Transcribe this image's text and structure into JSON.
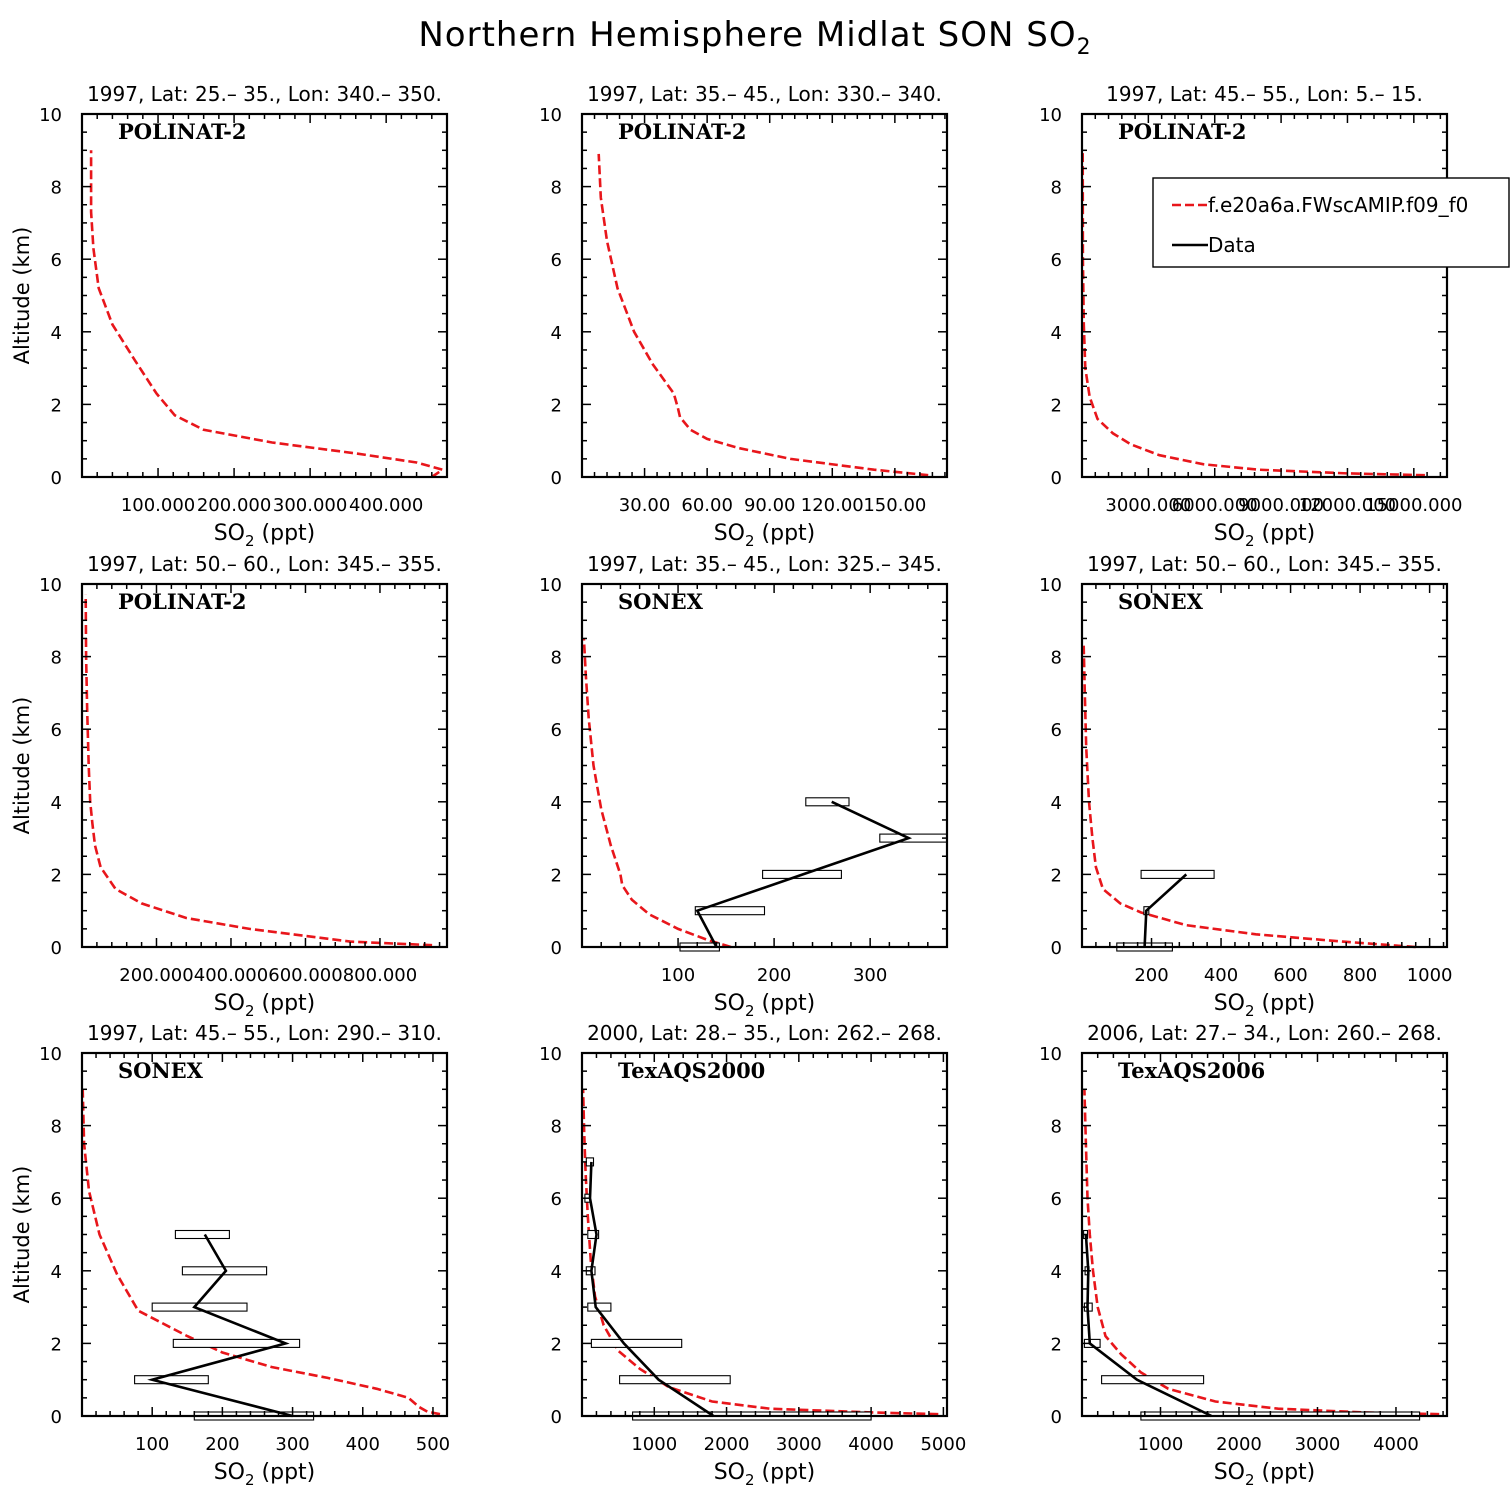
{
  "figure": {
    "title": "Northern Hemisphere Midlat SON SO",
    "title_sub": "2"
  },
  "legend": {
    "model_label": "f.e20a6a.FWscAMIP.f09_f0",
    "data_label": "Data",
    "model_color": "#e8161b",
    "data_color": "#000000"
  },
  "chart_data": [
    {
      "type": "line",
      "subtitle": "1997, Lat: 25.– 35., Lon: 340.– 350.",
      "campaign": "POLINAT-2",
      "ylabel": "Altitude (km)",
      "xlabel": "SO",
      "xlabel_sub": "2",
      "xlabel_unit": " (ppt)",
      "xlim": [
        0,
        480
      ],
      "ylim": [
        0,
        10
      ],
      "xticks": [
        100,
        200,
        300,
        400
      ],
      "xtick_labels": [
        "100.000",
        "200.000",
        "300.000",
        "400.000"
      ],
      "yticks": [
        0,
        2,
        4,
        6,
        8,
        10
      ],
      "series": [
        {
          "x": [
            460,
            474,
            440,
            360,
            250,
            160,
            122,
            98,
            70,
            40,
            22,
            15,
            12,
            12,
            12
          ],
          "y": [
            0.0,
            0.2,
            0.4,
            0.65,
            0.95,
            1.3,
            1.7,
            2.3,
            3.2,
            4.2,
            5.2,
            6.3,
            7.3,
            8.3,
            9.0
          ]
        }
      ],
      "data": null
    },
    {
      "type": "line",
      "subtitle": "1997, Lat: 35.– 45., Lon: 330.– 340.",
      "campaign": "POLINAT-2",
      "ylabel": "",
      "xlabel": "SO",
      "xlabel_sub": "2",
      "xlabel_unit": " (ppt)",
      "xlim": [
        0,
        175
      ],
      "ylim": [
        0,
        10
      ],
      "xticks": [
        30,
        60,
        90,
        120,
        150
      ],
      "xtick_labels": [
        "30.00",
        "60.00",
        "90.00",
        "120.00",
        "150.00"
      ],
      "series": [
        {
          "x": [
            166,
            140,
            100,
            75,
            60,
            52,
            47,
            46,
            44,
            34,
            25,
            17,
            12,
            9,
            8
          ],
          "y": [
            0.05,
            0.2,
            0.5,
            0.8,
            1.05,
            1.3,
            1.65,
            1.9,
            2.3,
            3.1,
            4.0,
            5.2,
            6.5,
            7.7,
            8.9
          ]
        }
      ],
      "data": null
    },
    {
      "type": "line",
      "subtitle": "1997, Lat: 45.– 55., Lon: 5.– 15.",
      "campaign": "POLINAT-2",
      "ylabel": "",
      "xlabel": "SO",
      "xlabel_sub": "2",
      "xlabel_unit": " (ppt)",
      "xlim": [
        0,
        16500
      ],
      "ylim": [
        0,
        10
      ],
      "xticks": [
        3000,
        6000,
        9000,
        12000,
        15000
      ],
      "xtick_labels": [
        "3000.000",
        "6000.000",
        "9000.000",
        "12000.000",
        "15000.000"
      ],
      "series": [
        {
          "x": [
            15500,
            12000,
            8000,
            5500,
            3500,
            2200,
            1400,
            700,
            350,
            150,
            80,
            40,
            30
          ],
          "y": [
            0.05,
            0.1,
            0.2,
            0.35,
            0.6,
            0.9,
            1.2,
            1.6,
            2.2,
            3.0,
            4.2,
            6.0,
            9.0
          ]
        }
      ],
      "data": null
    },
    {
      "type": "line",
      "subtitle": "1997, Lat: 50.– 60., Lon: 345.– 355.",
      "campaign": "POLINAT-2",
      "ylabel": "Altitude (km)",
      "xlabel": "SO",
      "xlabel_sub": "2",
      "xlabel_unit": " (ppt)",
      "xlim": [
        0,
        980
      ],
      "ylim": [
        0,
        10
      ],
      "xticks": [
        200,
        400,
        600,
        800
      ],
      "xtick_labels": [
        "200.000",
        "400.000",
        "600.000",
        "800.000"
      ],
      "series": [
        {
          "x": [
            940,
            720,
            450,
            280,
            160,
            90,
            50,
            35,
            28,
            22,
            18,
            14,
            11,
            10
          ],
          "y": [
            0.05,
            0.15,
            0.5,
            0.8,
            1.2,
            1.6,
            2.2,
            2.8,
            3.4,
            4.0,
            5.0,
            6.5,
            8.0,
            9.7
          ]
        }
      ],
      "data": null
    },
    {
      "type": "line",
      "subtitle": "1997, Lat: 35.– 45., Lon: 325.– 345.",
      "campaign": "SONEX",
      "ylabel": "",
      "xlabel": "SO",
      "xlabel_sub": "2",
      "xlabel_unit": " (ppt)",
      "xlim": [
        0,
        380
      ],
      "ylim": [
        0,
        10
      ],
      "xticks": [
        100,
        200,
        300
      ],
      "xtick_labels": [
        "100",
        "200",
        "300"
      ],
      "series": [
        {
          "x": [
            155,
            130,
            100,
            70,
            52,
            42,
            40,
            30,
            20,
            12,
            7,
            4,
            2
          ],
          "y": [
            0.0,
            0.2,
            0.5,
            0.9,
            1.3,
            1.7,
            2.0,
            2.8,
            3.8,
            5.0,
            6.3,
            7.5,
            8.5
          ]
        }
      ],
      "data": {
        "x": [
          140,
          120,
          230,
          340,
          260
        ],
        "y": [
          0.0,
          1.0,
          2.0,
          3.0,
          4.0
        ],
        "xmin": [
          102,
          118,
          188,
          310,
          233
        ],
        "xmax": [
          143,
          190,
          270,
          380,
          278
        ]
      }
    },
    {
      "type": "line",
      "subtitle": "1997, Lat: 50.– 60., Lon: 345.– 355.",
      "campaign": "SONEX",
      "ylabel": "",
      "xlabel": "SO",
      "xlabel_sub": "2",
      "xlabel_unit": " (ppt)",
      "xlim": [
        0,
        1050
      ],
      "ylim": [
        0,
        10
      ],
      "xticks": [
        200,
        400,
        600,
        800,
        1000
      ],
      "xtick_labels": [
        "200",
        "400",
        "600",
        "800",
        "1000"
      ],
      "series": [
        {
          "x": [
            960,
            750,
            500,
            300,
            170,
            110,
            60,
            40,
            30,
            20,
            12,
            8,
            5
          ],
          "y": [
            0.0,
            0.15,
            0.35,
            0.6,
            0.95,
            1.2,
            1.6,
            2.2,
            3.0,
            4.0,
            5.5,
            7.0,
            8.3
          ]
        }
      ],
      "data": {
        "x": [
          180,
          185,
          300
        ],
        "y": [
          0.0,
          1.0,
          2.0
        ],
        "xmin": [
          100,
          178,
          170
        ],
        "xmax": [
          260,
          192,
          380
        ]
      }
    },
    {
      "type": "line",
      "subtitle": "1997, Lat: 45.– 55., Lon: 290.– 310.",
      "campaign": "SONEX",
      "ylabel": "Altitude (km)",
      "xlabel": "SO",
      "xlabel_sub": "2",
      "xlabel_unit": " (ppt)",
      "xlim": [
        0,
        520
      ],
      "ylim": [
        0,
        10
      ],
      "xticks": [
        100,
        200,
        300,
        400,
        500
      ],
      "xtick_labels": [
        "100",
        "200",
        "300",
        "400",
        "500"
      ],
      "series": [
        {
          "x": [
            510,
            492,
            480,
            465,
            420,
            350,
            270,
            200,
            150,
            80,
            50,
            25,
            10,
            3,
            1
          ],
          "y": [
            0.05,
            0.12,
            0.25,
            0.5,
            0.75,
            1.05,
            1.35,
            1.75,
            2.2,
            2.9,
            3.9,
            5.0,
            6.2,
            7.5,
            9.0
          ]
        }
      ],
      "data": {
        "x": [
          300,
          100,
          290,
          160,
          205,
          175
        ],
        "y": [
          0.0,
          1.0,
          2.0,
          3.0,
          4.0,
          5.0
        ],
        "xmin": [
          160,
          75,
          130,
          100,
          143,
          133
        ],
        "xmax": [
          330,
          180,
          310,
          235,
          263,
          210
        ]
      }
    },
    {
      "type": "line",
      "subtitle": "2000, Lat: 28.– 35., Lon: 262.– 268.",
      "campaign": "TexAQS2000",
      "ylabel": "",
      "xlabel": "SO",
      "xlabel_sub": "2",
      "xlabel_unit": " (ppt)",
      "xlim": [
        0,
        5050
      ],
      "ylim": [
        0,
        10
      ],
      "xticks": [
        1000,
        2000,
        3000,
        4000,
        5000
      ],
      "xtick_labels": [
        "1000",
        "2000",
        "3000",
        "4000",
        "5000"
      ],
      "series": [
        {
          "x": [
            4930,
            4000,
            2600,
            1800,
            1200,
            800,
            500,
            300,
            180,
            120,
            80,
            50,
            30,
            15
          ],
          "y": [
            0.05,
            0.1,
            0.2,
            0.4,
            0.8,
            1.3,
            1.8,
            2.5,
            3.3,
            4.3,
            5.5,
            6.7,
            7.8,
            9.0
          ]
        }
      ],
      "data": {
        "x": [
          1820,
          1060,
          580,
          190,
          130,
          200,
          110,
          130
        ],
        "y": [
          0.0,
          1.0,
          2.0,
          3.0,
          4.0,
          5.0,
          6.0,
          7.0
        ],
        "xmin": [
          700,
          520,
          130,
          80,
          60,
          80,
          40,
          60
        ],
        "xmax": [
          4000,
          2050,
          1380,
          400,
          180,
          230,
          110,
          160
        ]
      }
    },
    {
      "type": "line",
      "subtitle": "2006, Lat: 27.– 34., Lon: 260.– 268.",
      "campaign": "TexAQS2006",
      "ylabel": "",
      "xlabel": "SO",
      "xlabel_sub": "2",
      "xlabel_unit": " (ppt)",
      "xlim": [
        0,
        4650
      ],
      "ylim": [
        0,
        10
      ],
      "xticks": [
        1000,
        2000,
        3000,
        4000
      ],
      "xtick_labels": [
        "1000",
        "2000",
        "3000",
        "4000"
      ],
      "series": [
        {
          "x": [
            4550,
            3600,
            2500,
            1700,
            1100,
            750,
            500,
            300,
            200,
            140,
            100,
            70,
            50,
            30
          ],
          "y": [
            0.05,
            0.1,
            0.2,
            0.4,
            0.75,
            1.2,
            1.7,
            2.2,
            3.0,
            4.0,
            5.0,
            6.0,
            7.5,
            9.0
          ]
        }
      ],
      "data": {
        "x": [
          1650,
          700,
          100,
          70,
          80,
          50
        ],
        "y": [
          0.0,
          1.0,
          2.0,
          3.0,
          4.0,
          5.0
        ],
        "xmin": [
          750,
          250,
          30,
          30,
          40,
          20
        ],
        "xmax": [
          4300,
          1550,
          230,
          130,
          90,
          70
        ]
      }
    }
  ]
}
